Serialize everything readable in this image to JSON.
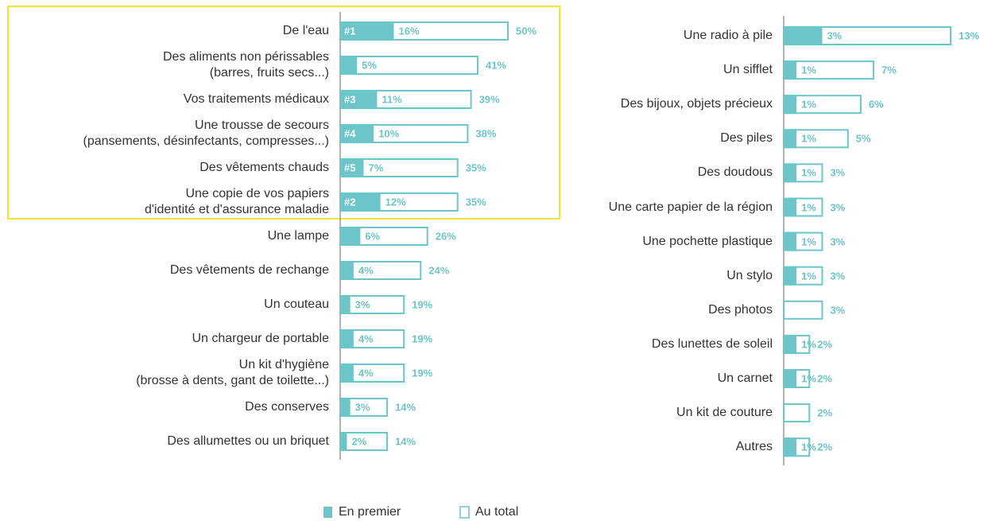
{
  "chart_data": [
    {
      "type": "bar",
      "orientation": "horizontal",
      "xlim": [
        0,
        50
      ],
      "categories": [
        "De l'eau",
        "Des aliments non périssables\n(barres, fruits secs...)",
        "Vos traitements médicaux",
        "Une trousse de secours\n(pansements, désinfectants, compresses...)",
        "Des vêtements chauds",
        "Une copie de vos papiers\nd'identité et d'assurance maladie",
        "Une lampe",
        "Des vêtements de rechange",
        "Un couteau",
        "Un chargeur de portable",
        "Un kit d'hygiène\n(brosse à dents, gant de toilette...)",
        "Des conserves",
        "Des allumettes ou un briquet"
      ],
      "ranks": [
        "#1",
        null,
        "#3",
        "#4",
        "#5",
        "#2",
        null,
        null,
        null,
        null,
        null,
        null,
        null
      ],
      "series": [
        {
          "name": "En premier",
          "color": "#6cc5c8",
          "style": "filled",
          "values": [
            16,
            5,
            11,
            10,
            7,
            12,
            6,
            4,
            3,
            4,
            4,
            3,
            2
          ],
          "value_labels": [
            "16%",
            "5%",
            "11%",
            "10%",
            "7%",
            "12%",
            "6%",
            "4%",
            "3%",
            "4%",
            "4%",
            "3%",
            "2%"
          ]
        },
        {
          "name": "Au total",
          "color": "#6cc5c8",
          "style": "outline",
          "values": [
            50,
            41,
            39,
            38,
            35,
            35,
            26,
            24,
            19,
            19,
            19,
            14,
            14
          ],
          "value_labels": [
            "50%",
            "41%",
            "39%",
            "38%",
            "35%",
            "35%",
            "26%",
            "24%",
            "19%",
            "19%",
            "19%",
            "14%",
            "14%"
          ]
        }
      ]
    },
    {
      "type": "bar",
      "orientation": "horizontal",
      "xlim": [
        0,
        13
      ],
      "categories": [
        "Une radio à pile",
        "Un sifflet",
        "Des bijoux, objets précieux",
        "Des piles",
        "Des doudous",
        "Une carte papier de la région",
        "Une pochette plastique",
        "Un stylo",
        "Des photos",
        "Des lunettes de soleil",
        "Un carnet",
        "Un kit de couture",
        "Autres"
      ],
      "series": [
        {
          "name": "En premier",
          "color": "#6cc5c8",
          "style": "filled",
          "values": [
            3,
            1,
            1,
            1,
            1,
            1,
            1,
            1,
            0,
            1,
            1,
            0,
            1
          ],
          "value_labels": [
            "3%",
            "1%",
            "1%",
            "1%",
            "1%",
            "1%",
            "1%",
            "1%",
            null,
            "1%",
            "1%",
            null,
            "1%"
          ]
        },
        {
          "name": "Au total",
          "color": "#6cc5c8",
          "style": "outline",
          "values": [
            13,
            7,
            6,
            5,
            3,
            3,
            3,
            3,
            3,
            2,
            2,
            2,
            2
          ],
          "value_labels": [
            "13%",
            "7%",
            "6%",
            "5%",
            "3%",
            "3%",
            "3%",
            "3%",
            "3%",
            "2%",
            "2%",
            "2%",
            "2%"
          ]
        }
      ]
    }
  ]
}
